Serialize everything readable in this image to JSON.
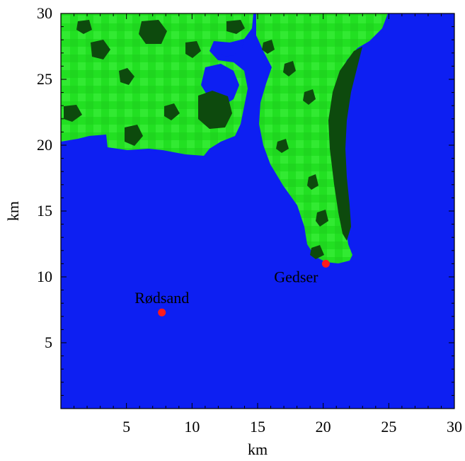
{
  "map": {
    "xlabel": "km",
    "ylabel": "km",
    "x_range_km": [
      0,
      30
    ],
    "y_range_km": [
      0,
      30
    ],
    "x_ticks": [
      "5",
      "10",
      "15",
      "20",
      "25",
      "30"
    ],
    "y_ticks": [
      "5",
      "10",
      "15",
      "20",
      "25",
      "30"
    ],
    "colors": {
      "water": "#0d1ff2",
      "land": "#22e022",
      "land_light": "#3cf03c",
      "forest": "#0d4a0d",
      "marker": "#ff1a1a",
      "axis": "#000000"
    },
    "locations": [
      {
        "name": "Rødsand",
        "x_km": 7.7,
        "y_km": 7.3
      },
      {
        "name": "Gedser",
        "x_km": 20.2,
        "y_km": 11.0
      }
    ]
  }
}
